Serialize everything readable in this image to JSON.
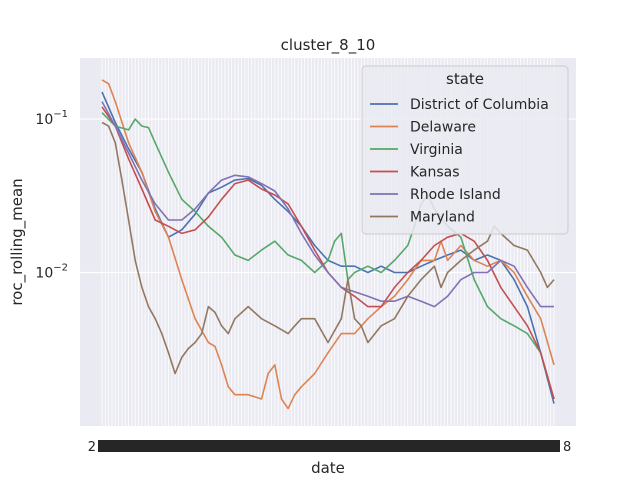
{
  "chart_data": {
    "type": "line",
    "title": "cluster_8_10",
    "xlabel": "date",
    "ylabel": "roc_rolling_mean",
    "yscale": "log",
    "ylim": [
      0.001,
      0.25
    ],
    "x_index_range": [
      0,
      340
    ],
    "y_ticks": [
      {
        "value": 0.1,
        "base": "10",
        "exp": "−1"
      },
      {
        "value": 0.01,
        "base": "10",
        "exp": "−2"
      }
    ],
    "grid": true,
    "legend": {
      "title": "state",
      "position": "top-right"
    },
    "colors": {
      "background": "#eaeaf2",
      "grid": "#ffffff",
      "text": "#262626"
    },
    "series": [
      {
        "name": "District of Columbia",
        "color": "#4c72b0",
        "points": [
          [
            0,
            0.15
          ],
          [
            10,
            0.095
          ],
          [
            20,
            0.064
          ],
          [
            30,
            0.045
          ],
          [
            40,
            0.026
          ],
          [
            50,
            0.017
          ],
          [
            60,
            0.019
          ],
          [
            70,
            0.024
          ],
          [
            80,
            0.033
          ],
          [
            90,
            0.036
          ],
          [
            100,
            0.04
          ],
          [
            110,
            0.041
          ],
          [
            120,
            0.037
          ],
          [
            130,
            0.03
          ],
          [
            140,
            0.025
          ],
          [
            150,
            0.02
          ],
          [
            160,
            0.015
          ],
          [
            170,
            0.012
          ],
          [
            180,
            0.011
          ],
          [
            190,
            0.011
          ],
          [
            200,
            0.01
          ],
          [
            210,
            0.011
          ],
          [
            220,
            0.01
          ],
          [
            230,
            0.01
          ],
          [
            240,
            0.011
          ],
          [
            250,
            0.012
          ],
          [
            260,
            0.013
          ],
          [
            270,
            0.014
          ],
          [
            280,
            0.012
          ],
          [
            290,
            0.013
          ],
          [
            300,
            0.012
          ],
          [
            310,
            0.009
          ],
          [
            320,
            0.006
          ],
          [
            330,
            0.003
          ],
          [
            340,
            0.0014
          ]
        ]
      },
      {
        "name": "Delaware",
        "color": "#dd8452",
        "points": [
          [
            0,
            0.18
          ],
          [
            5,
            0.17
          ],
          [
            10,
            0.13
          ],
          [
            20,
            0.07
          ],
          [
            30,
            0.045
          ],
          [
            40,
            0.025
          ],
          [
            50,
            0.017
          ],
          [
            60,
            0.009
          ],
          [
            70,
            0.005
          ],
          [
            80,
            0.0035
          ],
          [
            85,
            0.0033
          ],
          [
            90,
            0.0025
          ],
          [
            95,
            0.0018
          ],
          [
            100,
            0.0016
          ],
          [
            110,
            0.0016
          ],
          [
            120,
            0.0015
          ],
          [
            125,
            0.0022
          ],
          [
            130,
            0.0025
          ],
          [
            135,
            0.0015
          ],
          [
            140,
            0.0013
          ],
          [
            145,
            0.0016
          ],
          [
            150,
            0.0018
          ],
          [
            160,
            0.0022
          ],
          [
            170,
            0.003
          ],
          [
            180,
            0.004
          ],
          [
            190,
            0.004
          ],
          [
            200,
            0.005
          ],
          [
            210,
            0.006
          ],
          [
            220,
            0.007
          ],
          [
            230,
            0.009
          ],
          [
            240,
            0.012
          ],
          [
            250,
            0.012
          ],
          [
            255,
            0.016
          ],
          [
            260,
            0.012
          ],
          [
            270,
            0.015
          ],
          [
            280,
            0.012
          ],
          [
            290,
            0.011
          ],
          [
            300,
            0.012
          ],
          [
            310,
            0.01
          ],
          [
            320,
            0.007
          ],
          [
            330,
            0.005
          ],
          [
            340,
            0.0025
          ]
        ]
      },
      {
        "name": "Virginia",
        "color": "#55a868",
        "points": [
          [
            0,
            0.11
          ],
          [
            10,
            0.09
          ],
          [
            20,
            0.085
          ],
          [
            25,
            0.1
          ],
          [
            30,
            0.09
          ],
          [
            35,
            0.088
          ],
          [
            40,
            0.07
          ],
          [
            50,
            0.045
          ],
          [
            60,
            0.03
          ],
          [
            70,
            0.025
          ],
          [
            80,
            0.02
          ],
          [
            90,
            0.017
          ],
          [
            100,
            0.013
          ],
          [
            110,
            0.012
          ],
          [
            120,
            0.014
          ],
          [
            130,
            0.016
          ],
          [
            140,
            0.013
          ],
          [
            150,
            0.012
          ],
          [
            160,
            0.01
          ],
          [
            170,
            0.012
          ],
          [
            175,
            0.016
          ],
          [
            180,
            0.018
          ],
          [
            185,
            0.009
          ],
          [
            190,
            0.01
          ],
          [
            200,
            0.011
          ],
          [
            210,
            0.01
          ],
          [
            220,
            0.012
          ],
          [
            230,
            0.015
          ],
          [
            235,
            0.02
          ],
          [
            240,
            0.028
          ],
          [
            245,
            0.032
          ],
          [
            250,
            0.026
          ],
          [
            260,
            0.02
          ],
          [
            270,
            0.017
          ],
          [
            280,
            0.009
          ],
          [
            290,
            0.006
          ],
          [
            300,
            0.005
          ],
          [
            310,
            0.0045
          ],
          [
            320,
            0.004
          ],
          [
            330,
            0.003
          ],
          [
            340,
            0.0015
          ]
        ]
      },
      {
        "name": "Kansas",
        "color": "#c44e52",
        "points": [
          [
            0,
            0.12
          ],
          [
            10,
            0.09
          ],
          [
            20,
            0.055
          ],
          [
            30,
            0.035
          ],
          [
            40,
            0.022
          ],
          [
            50,
            0.02
          ],
          [
            60,
            0.018
          ],
          [
            70,
            0.019
          ],
          [
            80,
            0.023
          ],
          [
            90,
            0.03
          ],
          [
            100,
            0.038
          ],
          [
            110,
            0.04
          ],
          [
            120,
            0.035
          ],
          [
            130,
            0.032
          ],
          [
            140,
            0.028
          ],
          [
            150,
            0.02
          ],
          [
            160,
            0.014
          ],
          [
            170,
            0.01
          ],
          [
            180,
            0.008
          ],
          [
            190,
            0.007
          ],
          [
            200,
            0.006
          ],
          [
            210,
            0.006
          ],
          [
            220,
            0.008
          ],
          [
            230,
            0.01
          ],
          [
            240,
            0.012
          ],
          [
            250,
            0.015
          ],
          [
            260,
            0.017
          ],
          [
            270,
            0.018
          ],
          [
            280,
            0.016
          ],
          [
            290,
            0.012
          ],
          [
            300,
            0.008
          ],
          [
            310,
            0.006
          ],
          [
            320,
            0.0045
          ],
          [
            330,
            0.003
          ],
          [
            340,
            0.0015
          ]
        ]
      },
      {
        "name": "Rhode Island",
        "color": "#8172b3",
        "points": [
          [
            0,
            0.13
          ],
          [
            10,
            0.09
          ],
          [
            20,
            0.06
          ],
          [
            30,
            0.04
          ],
          [
            40,
            0.028
          ],
          [
            50,
            0.022
          ],
          [
            60,
            0.022
          ],
          [
            70,
            0.026
          ],
          [
            80,
            0.033
          ],
          [
            90,
            0.04
          ],
          [
            100,
            0.043
          ],
          [
            110,
            0.042
          ],
          [
            120,
            0.038
          ],
          [
            130,
            0.034
          ],
          [
            140,
            0.026
          ],
          [
            150,
            0.018
          ],
          [
            160,
            0.013
          ],
          [
            170,
            0.01
          ],
          [
            180,
            0.008
          ],
          [
            190,
            0.0075
          ],
          [
            200,
            0.007
          ],
          [
            210,
            0.0065
          ],
          [
            220,
            0.0065
          ],
          [
            230,
            0.007
          ],
          [
            240,
            0.0065
          ],
          [
            250,
            0.006
          ],
          [
            260,
            0.007
          ],
          [
            270,
            0.009
          ],
          [
            280,
            0.01
          ],
          [
            290,
            0.01
          ],
          [
            300,
            0.012
          ],
          [
            310,
            0.011
          ],
          [
            320,
            0.008
          ],
          [
            330,
            0.006
          ],
          [
            340,
            0.006
          ]
        ]
      },
      {
        "name": "Maryland",
        "color": "#937860",
        "points": [
          [
            0,
            0.095
          ],
          [
            5,
            0.09
          ],
          [
            10,
            0.07
          ],
          [
            15,
            0.04
          ],
          [
            20,
            0.022
          ],
          [
            25,
            0.012
          ],
          [
            30,
            0.008
          ],
          [
            35,
            0.006
          ],
          [
            40,
            0.005
          ],
          [
            45,
            0.004
          ],
          [
            50,
            0.003
          ],
          [
            55,
            0.0022
          ],
          [
            60,
            0.0028
          ],
          [
            65,
            0.0032
          ],
          [
            70,
            0.0035
          ],
          [
            75,
            0.004
          ],
          [
            80,
            0.006
          ],
          [
            85,
            0.0055
          ],
          [
            90,
            0.0045
          ],
          [
            95,
            0.004
          ],
          [
            100,
            0.005
          ],
          [
            110,
            0.006
          ],
          [
            120,
            0.005
          ],
          [
            130,
            0.0045
          ],
          [
            140,
            0.004
          ],
          [
            145,
            0.0045
          ],
          [
            150,
            0.005
          ],
          [
            160,
            0.005
          ],
          [
            170,
            0.0035
          ],
          [
            180,
            0.005
          ],
          [
            185,
            0.009
          ],
          [
            190,
            0.005
          ],
          [
            195,
            0.0045
          ],
          [
            200,
            0.0035
          ],
          [
            210,
            0.0045
          ],
          [
            220,
            0.005
          ],
          [
            230,
            0.007
          ],
          [
            240,
            0.009
          ],
          [
            250,
            0.011
          ],
          [
            255,
            0.008
          ],
          [
            260,
            0.01
          ],
          [
            270,
            0.012
          ],
          [
            280,
            0.014
          ],
          [
            290,
            0.016
          ],
          [
            295,
            0.02
          ],
          [
            300,
            0.018
          ],
          [
            310,
            0.015
          ],
          [
            320,
            0.014
          ],
          [
            330,
            0.01
          ],
          [
            335,
            0.008
          ],
          [
            340,
            0.009
          ]
        ]
      }
    ]
  }
}
